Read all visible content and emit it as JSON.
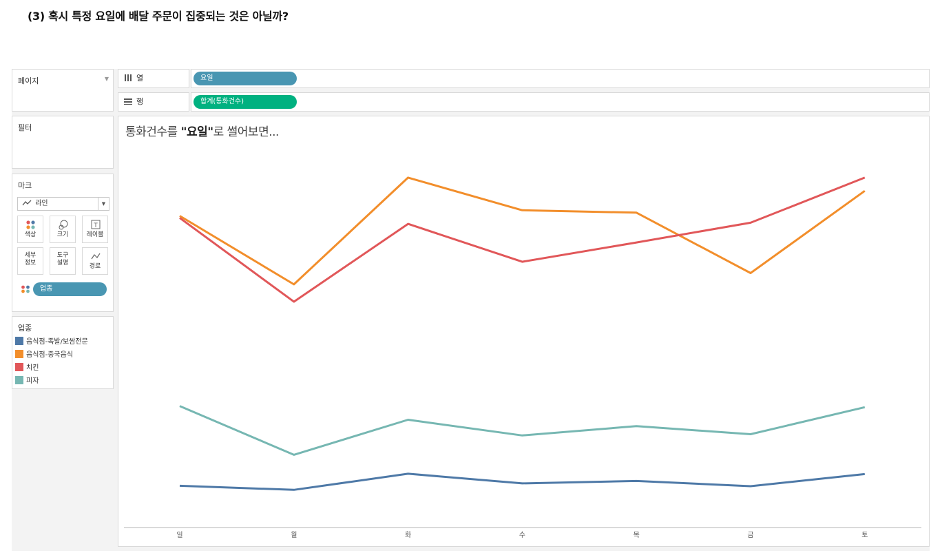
{
  "heading": "(3) 혹시 특정 요일에 배달 주문이 집중되는 것은 아닐까?",
  "sidebar": {
    "pages_title": "페이지",
    "filters_title": "필터",
    "marks_title": "마크",
    "mark_type": "라인",
    "mark_buttons": [
      {
        "icon": "color-dots-icon",
        "label": "색상"
      },
      {
        "icon": "size-icon",
        "label": "크기"
      },
      {
        "icon": "text-label-icon",
        "label": "레이블"
      },
      {
        "icon": "detail-icon",
        "label": "세부\n정보"
      },
      {
        "icon": "tooltip-icon",
        "label": "도구\n설명"
      },
      {
        "icon": "path-icon",
        "label": "경로"
      }
    ],
    "color_pill": "업종",
    "legend_title": "업종"
  },
  "shelves": {
    "columns_label": "열",
    "columns_pill": "요일",
    "rows_label": "행",
    "rows_pill": "합계(통화건수)"
  },
  "viz": {
    "title_pre": "통화건수를 ",
    "title_bold": "\"요일\"",
    "title_post": "로 썰어보면..."
  },
  "colors": {
    "columns_pill": "#4996b2",
    "rows_pill": "#00b180"
  },
  "chart_data": {
    "type": "line",
    "categories": [
      "일",
      "월",
      "화",
      "수",
      "목",
      "금",
      "토"
    ],
    "ylim": [
      0,
      100
    ],
    "grid": false,
    "series": [
      {
        "name": "음식점-족발/보쌈전문",
        "color": "#4e79a7",
        "values": [
          16.0,
          15.0,
          19.0,
          16.6,
          17.2,
          15.9,
          18.9
        ]
      },
      {
        "name": "음식점-중국음식",
        "color": "#f28e2b",
        "values": [
          83.0,
          66.0,
          92.5,
          84.4,
          83.8,
          68.8,
          89.2
        ]
      },
      {
        "name": "치킨",
        "color": "#e15759",
        "values": [
          82.5,
          61.7,
          81.0,
          71.6,
          76.4,
          81.3,
          92.5
        ]
      },
      {
        "name": "피자",
        "color": "#76b7b2",
        "values": [
          35.8,
          23.7,
          32.4,
          28.5,
          30.8,
          28.8,
          35.5
        ]
      }
    ]
  }
}
